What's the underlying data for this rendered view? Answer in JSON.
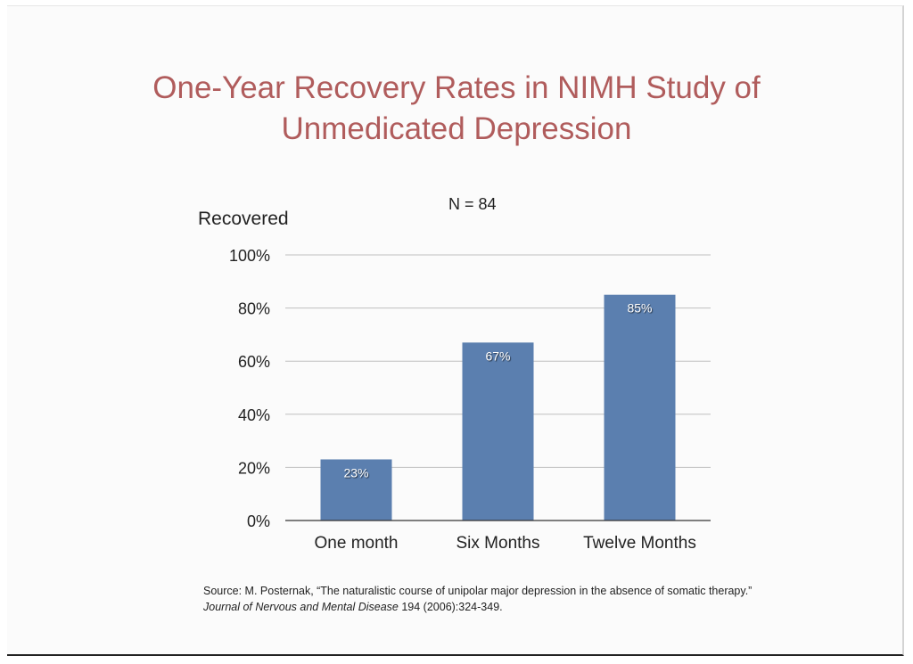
{
  "title": {
    "line1": "One-Year Recovery Rates in NIMH Study of",
    "line2": "Unmedicated Depression"
  },
  "annotation": "N =  84",
  "colors": {
    "title": "#b05c5c",
    "bar": "#5b7faf",
    "bar_label": "#ffffff",
    "grid": "#bfbfbf"
  },
  "chart_data": {
    "type": "bar",
    "ylabel": "Recovered",
    "xlabel": "",
    "categories": [
      "One month",
      "Six Months",
      "Twelve Months"
    ],
    "values": [
      23,
      67,
      85
    ],
    "data_labels": [
      "23%",
      "67%",
      "85%"
    ],
    "ylim": [
      0,
      100
    ],
    "yticks": [
      0,
      20,
      40,
      60,
      80,
      100
    ],
    "ytick_labels": [
      "0%",
      "20%",
      "40%",
      "60%",
      "80%",
      "100%"
    ],
    "grid": true,
    "legend": "none"
  },
  "source": {
    "prefix": "Source: M. Posternak, “The naturalistic course of unipolar major depression in the absence of somatic therapy.” ",
    "journal": "Journal of Nervous and Mental Disease",
    "suffix": " 194 (2006):324-349."
  }
}
